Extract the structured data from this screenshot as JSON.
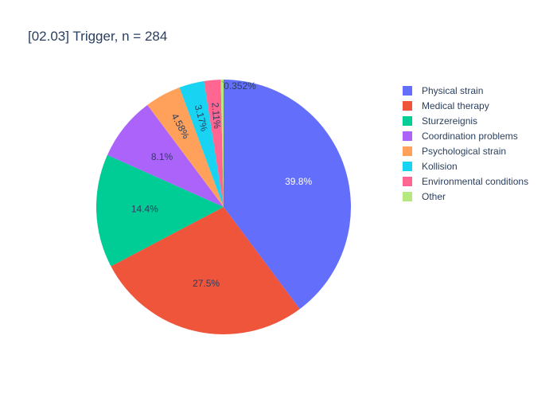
{
  "chart_data": {
    "type": "pie",
    "title": "[02.03] Trigger, n = 284",
    "labels": [
      "Physical strain",
      "Medical therapy",
      "Sturzereignis",
      "Coordination problems",
      "Psychological strain",
      "Kollision",
      "Environmental conditions",
      "Other"
    ],
    "values": [
      39.8,
      27.5,
      14.4,
      8.1,
      4.58,
      3.17,
      2.11,
      0.352
    ],
    "value_labels": [
      "39.8%",
      "27.5%",
      "14.4%",
      "8.1%",
      "4.58%",
      "3.17%",
      "2.11%",
      "0.352%"
    ],
    "colors": [
      "#636efa",
      "#EF553B",
      "#00cc96",
      "#ab63fa",
      "#FFA15A",
      "#19d3f3",
      "#FF6692",
      "#B6E880"
    ],
    "legend_position": "right",
    "start_angle": "top",
    "direction": "clockwise"
  }
}
